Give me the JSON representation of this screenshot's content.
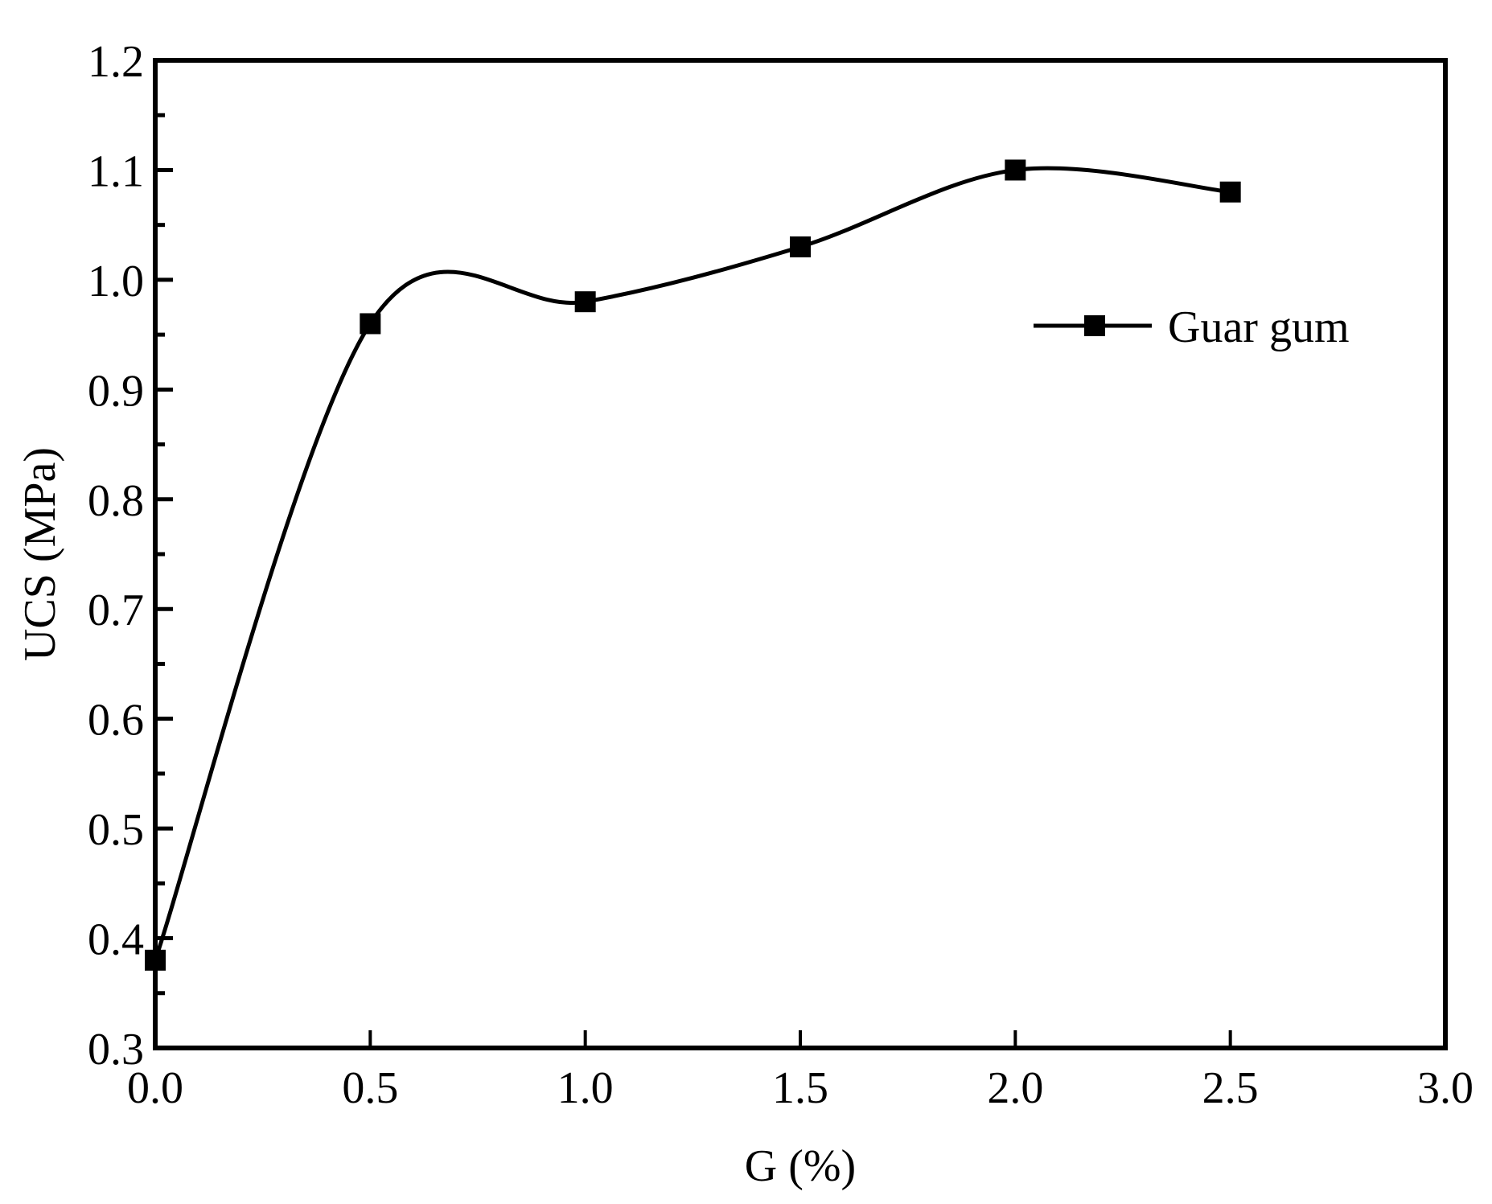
{
  "chart_data": {
    "type": "line",
    "title": "",
    "xlabel": "G (%)",
    "ylabel": "UCS (MPa)",
    "xlim": [
      0.0,
      3.0
    ],
    "ylim": [
      0.3,
      1.2
    ],
    "x_ticks": [
      "0.0",
      "0.5",
      "1.0",
      "1.5",
      "2.0",
      "2.5",
      "3.0"
    ],
    "y_ticks": [
      "0.3",
      "0.4",
      "0.5",
      "0.6",
      "0.7",
      "0.8",
      "0.9",
      "1.0",
      "1.1",
      "1.2"
    ],
    "grid": false,
    "legend_position": "upper right (inside plot)",
    "series": [
      {
        "name": "Guar gum",
        "color": "#000000",
        "marker": "square",
        "line": "smooth spline",
        "x": [
          0.0,
          0.5,
          1.0,
          1.5,
          2.0,
          2.5
        ],
        "values": [
          0.38,
          0.96,
          0.98,
          1.03,
          1.1,
          1.08
        ]
      }
    ]
  },
  "legend": {
    "label": "Guar gum"
  },
  "axes": {
    "x_title": "G (%)",
    "y_title": "UCS (MPa)"
  }
}
